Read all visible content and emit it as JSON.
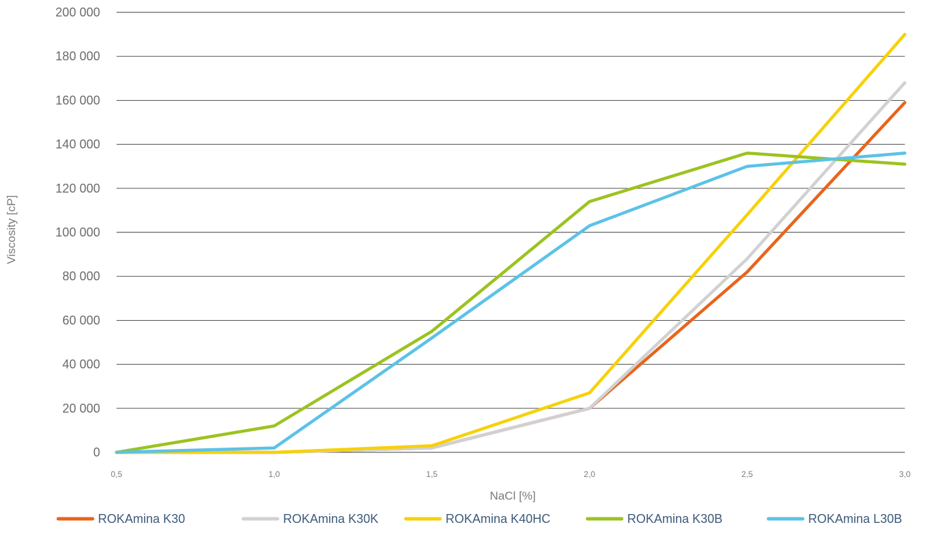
{
  "chart_data": {
    "type": "line",
    "title": "",
    "xlabel": "NaCl [%]",
    "ylabel": "Viscosity [cP]",
    "x": [
      0.5,
      1.0,
      1.5,
      2.0,
      2.5,
      3.0
    ],
    "x_tick_labels": [
      "0,5",
      "1,0",
      "1,5",
      "2,0",
      "2,5",
      "3,0"
    ],
    "ylim": [
      0,
      200000
    ],
    "y_ticks": [
      0,
      20000,
      40000,
      60000,
      80000,
      100000,
      120000,
      140000,
      160000,
      180000,
      200000
    ],
    "y_tick_labels": [
      "0",
      "20 000",
      "40 000",
      "60 000",
      "80 000",
      "100 000",
      "120 000",
      "140 000",
      "160 000",
      "180 000",
      "200 000"
    ],
    "grid": true,
    "legend_position": "bottom",
    "series": [
      {
        "name": "ROKAmina K30",
        "color": "#e8641b",
        "values": [
          0,
          0,
          2000,
          20000,
          82000,
          159000
        ]
      },
      {
        "name": "ROKAmina K30K",
        "color": "#d1d1d1",
        "values": [
          0,
          0,
          2000,
          20000,
          88000,
          168000
        ]
      },
      {
        "name": "ROKAmina K40HC",
        "color": "#f7d10a",
        "values": [
          0,
          0,
          3000,
          27000,
          108000,
          190000
        ]
      },
      {
        "name": "ROKAmina K30B",
        "color": "#9bc31f",
        "values": [
          0,
          12000,
          55000,
          114000,
          136000,
          131000
        ]
      },
      {
        "name": "ROKAmina L30B",
        "color": "#5bc2e7",
        "values": [
          0,
          2000,
          52000,
          103000,
          130000,
          136000
        ]
      }
    ]
  }
}
